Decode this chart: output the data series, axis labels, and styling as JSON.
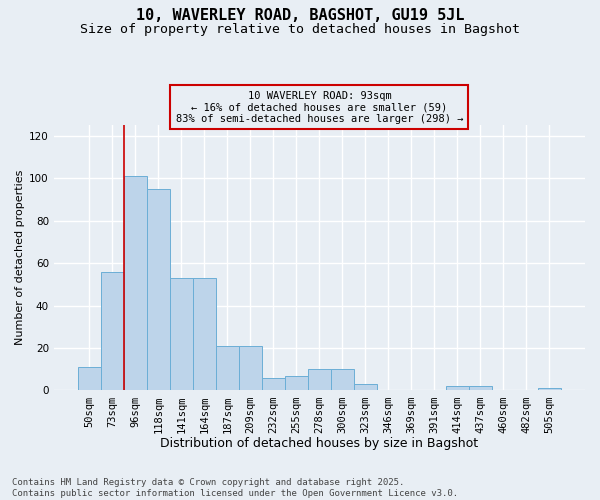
{
  "title": "10, WAVERLEY ROAD, BAGSHOT, GU19 5JL",
  "subtitle": "Size of property relative to detached houses in Bagshot",
  "xlabel": "Distribution of detached houses by size in Bagshot",
  "ylabel": "Number of detached properties",
  "categories": [
    "50sqm",
    "73sqm",
    "96sqm",
    "118sqm",
    "141sqm",
    "164sqm",
    "187sqm",
    "209sqm",
    "232sqm",
    "255sqm",
    "278sqm",
    "300sqm",
    "323sqm",
    "346sqm",
    "369sqm",
    "391sqm",
    "414sqm",
    "437sqm",
    "460sqm",
    "482sqm",
    "505sqm"
  ],
  "values": [
    11,
    56,
    101,
    95,
    53,
    53,
    21,
    21,
    6,
    7,
    10,
    10,
    3,
    0,
    0,
    0,
    2,
    2,
    0,
    0,
    1
  ],
  "bar_color": "#BDD4EA",
  "bar_edge_color": "#6BAED6",
  "background_color": "#E8EEF4",
  "grid_color": "#FFFFFF",
  "vline_color": "#CC0000",
  "annotation_text": "10 WAVERLEY ROAD: 93sqm\n← 16% of detached houses are smaller (59)\n83% of semi-detached houses are larger (298) →",
  "annotation_box_color": "#CC0000",
  "ylim": [
    0,
    125
  ],
  "yticks": [
    0,
    20,
    40,
    60,
    80,
    100,
    120
  ],
  "footer": "Contains HM Land Registry data © Crown copyright and database right 2025.\nContains public sector information licensed under the Open Government Licence v3.0.",
  "title_fontsize": 11,
  "subtitle_fontsize": 9.5,
  "xlabel_fontsize": 9,
  "ylabel_fontsize": 8,
  "tick_fontsize": 7.5,
  "footer_fontsize": 6.5
}
